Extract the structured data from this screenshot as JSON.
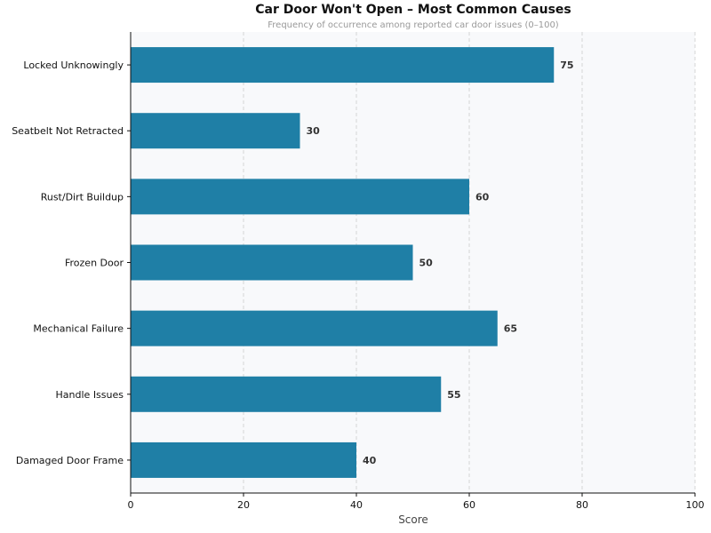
{
  "chart_data": {
    "type": "bar",
    "orientation": "horizontal",
    "title": "Car Door Won't Open – Most Common Causes",
    "subtitle": "Frequency of occurrence among reported car door issues (0–100)",
    "xlabel": "Score",
    "ylabel": "",
    "categories": [
      "Locked Unknowingly",
      "Seatbelt Not Retracted",
      "Rust/Dirt Buildup",
      "Frozen Door",
      "Mechanical Failure",
      "Handle Issues",
      "Damaged Door Frame"
    ],
    "values": [
      75,
      30,
      60,
      50,
      65,
      55,
      40
    ],
    "xlim": [
      0,
      100
    ],
    "xticks": [
      0,
      20,
      40,
      60,
      80,
      100
    ],
    "grid": "vertical dashed",
    "bar_color": "#1f7fa6",
    "background": "#f8f9fb"
  }
}
